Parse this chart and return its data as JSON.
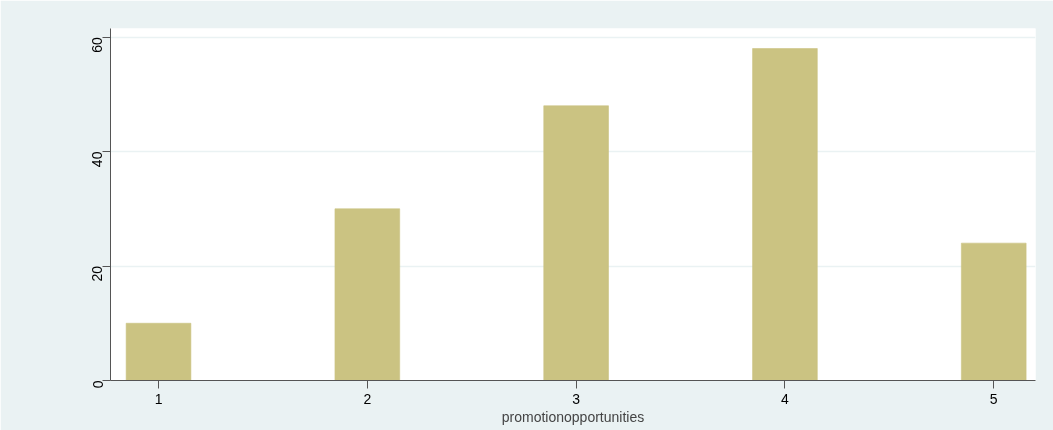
{
  "chart_data": {
    "type": "bar",
    "xlabel": "promotionopportunities",
    "x": [
      1,
      2,
      3,
      4,
      5
    ],
    "values": [
      10,
      30,
      48,
      58,
      24
    ],
    "color": "#cbc382",
    "xlim": [
      0.77,
      5.2
    ],
    "xticks": [
      1,
      2,
      3,
      4,
      5
    ],
    "ylim": [
      0,
      61.5
    ],
    "yticks": [
      0,
      20,
      40,
      60
    ],
    "grid": "y"
  }
}
